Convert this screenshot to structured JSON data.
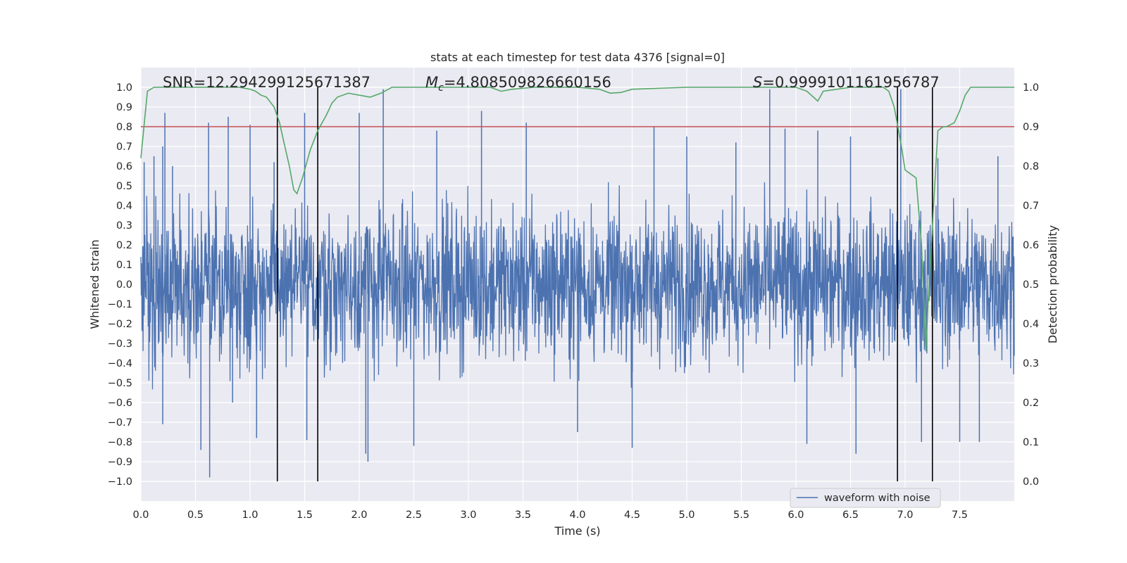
{
  "chart_data": {
    "type": "line",
    "title": "stats at each timestep for test data 4376 [signal=0]",
    "xlabel": "Time (s)",
    "ylabel": "Whitened strain",
    "y2label": "Detection probability",
    "xlim": [
      0.0,
      8.0
    ],
    "ylim": [
      -1.1,
      1.1
    ],
    "y2lim": [
      -0.05,
      1.05
    ],
    "xticks": [
      0.0,
      0.5,
      1.0,
      1.5,
      2.0,
      2.5,
      3.0,
      3.5,
      4.0,
      4.5,
      5.0,
      5.5,
      6.0,
      6.5,
      7.0,
      7.5
    ],
    "xtick_labels": [
      "0.0",
      "0.5",
      "1.0",
      "1.5",
      "2.0",
      "2.5",
      "3.0",
      "3.5",
      "4.0",
      "4.5",
      "5.0",
      "5.5",
      "6.0",
      "6.5",
      "7.0",
      "7.5"
    ],
    "yticks": [
      -1.0,
      -0.9,
      -0.8,
      -0.7,
      -0.6,
      -0.5,
      -0.4,
      -0.3,
      -0.2,
      -0.1,
      0.0,
      0.1,
      0.2,
      0.3,
      0.4,
      0.5,
      0.6,
      0.7,
      0.8,
      0.9,
      1.0
    ],
    "ytick_labels": [
      "−1.0",
      "−0.9",
      "−0.8",
      "−0.7",
      "−0.6",
      "−0.5",
      "−0.4",
      "−0.3",
      "−0.2",
      "−0.1",
      "0.0",
      "0.1",
      "0.2",
      "0.3",
      "0.4",
      "0.5",
      "0.6",
      "0.7",
      "0.8",
      "0.9",
      "1.0"
    ],
    "y2ticks": [
      0.0,
      0.1,
      0.2,
      0.3,
      0.4,
      0.5,
      0.6,
      0.7,
      0.8,
      0.9,
      1.0
    ],
    "y2tick_labels": [
      "0.0",
      "0.1",
      "0.2",
      "0.3",
      "0.4",
      "0.5",
      "0.6",
      "0.7",
      "0.8",
      "0.9",
      "1.0"
    ],
    "annotations": {
      "snr": "SNR=12.294299125671387",
      "mc_symbol": "M",
      "mc_sub": "c",
      "mc_value": "=4.808509826660156",
      "s_symbol": "S",
      "s_value": "=0.9999101161956787"
    },
    "legend": {
      "label": "waveform with noise",
      "position": "lower-right"
    },
    "threshold": {
      "y2": 0.9,
      "color": "#c44e52"
    },
    "vertical_lines": [
      1.25,
      1.62,
      6.93,
      7.25
    ],
    "series": [
      {
        "name": "waveform with noise",
        "axis": "left",
        "color": "#4c72b0",
        "kind": "noise",
        "duration_s": 8.0,
        "typical_amplitude": 0.35,
        "peaks": [
          [
            0.03,
            0.62
          ],
          [
            0.12,
            0.65
          ],
          [
            0.2,
            0.7
          ],
          [
            0.2,
            -0.71
          ],
          [
            0.22,
            0.87
          ],
          [
            0.29,
            0.6
          ],
          [
            0.55,
            -0.84
          ],
          [
            0.62,
            0.82
          ],
          [
            0.63,
            -0.98
          ],
          [
            0.8,
            0.85
          ],
          [
            0.84,
            -0.6
          ],
          [
            1.0,
            0.81
          ],
          [
            1.06,
            -0.78
          ],
          [
            1.22,
            0.62
          ],
          [
            1.5,
            0.87
          ],
          [
            1.52,
            -0.79
          ],
          [
            2.0,
            0.87
          ],
          [
            2.06,
            -0.86
          ],
          [
            2.08,
            -0.9
          ],
          [
            2.22,
            0.99
          ],
          [
            2.5,
            -0.82
          ],
          [
            2.71,
            0.78
          ],
          [
            3.12,
            0.88
          ],
          [
            3.53,
            0.82
          ],
          [
            4.0,
            -0.75
          ],
          [
            4.5,
            -0.83
          ],
          [
            4.7,
            0.8
          ],
          [
            5.0,
            0.75
          ],
          [
            5.45,
            0.72
          ],
          [
            5.76,
            0.99
          ],
          [
            5.9,
            0.79
          ],
          [
            6.1,
            -0.81
          ],
          [
            6.2,
            0.78
          ],
          [
            6.5,
            0.75
          ],
          [
            6.55,
            -0.86
          ],
          [
            6.96,
            0.99
          ],
          [
            7.15,
            -0.8
          ],
          [
            7.3,
            0.64
          ],
          [
            7.5,
            -0.8
          ],
          [
            7.68,
            -0.8
          ],
          [
            7.85,
            0.65
          ]
        ]
      },
      {
        "name": "detection probability",
        "axis": "right",
        "color": "#55a868",
        "x": [
          0.0,
          0.06,
          0.12,
          0.2,
          0.5,
          0.8,
          0.9,
          1.0,
          1.05,
          1.1,
          1.15,
          1.22,
          1.27,
          1.31,
          1.36,
          1.4,
          1.43,
          1.48,
          1.55,
          1.62,
          1.7,
          1.75,
          1.8,
          1.9,
          2.0,
          2.1,
          2.2,
          2.3,
          2.5,
          3.0,
          3.2,
          3.3,
          3.4,
          3.6,
          4.0,
          4.2,
          4.3,
          4.4,
          4.5,
          5.0,
          5.5,
          5.8,
          6.0,
          6.1,
          6.2,
          6.25,
          6.5,
          6.6,
          6.8,
          6.85,
          6.9,
          6.96,
          7.0,
          7.05,
          7.1,
          7.15,
          7.19,
          7.21,
          7.25,
          7.3,
          7.35,
          7.38,
          7.45,
          7.5,
          7.55,
          7.6,
          7.8,
          8.0
        ],
        "y": [
          0.82,
          0.99,
          1.0,
          1.0,
          1.0,
          1.0,
          1.0,
          0.995,
          0.99,
          0.98,
          0.975,
          0.95,
          0.91,
          0.86,
          0.8,
          0.74,
          0.73,
          0.77,
          0.84,
          0.89,
          0.93,
          0.96,
          0.975,
          0.985,
          0.98,
          0.975,
          0.985,
          1.0,
          1.0,
          1.0,
          1.0,
          0.99,
          0.995,
          1.0,
          1.0,
          0.995,
          0.985,
          0.987,
          0.995,
          1.0,
          1.0,
          1.0,
          1.0,
          0.99,
          0.965,
          0.99,
          1.0,
          1.0,
          1.0,
          0.99,
          0.95,
          0.86,
          0.79,
          0.78,
          0.77,
          0.6,
          0.33,
          0.45,
          0.65,
          0.89,
          0.9,
          0.9,
          0.91,
          0.94,
          0.98,
          1.0,
          1.0,
          1.0
        ]
      }
    ]
  }
}
